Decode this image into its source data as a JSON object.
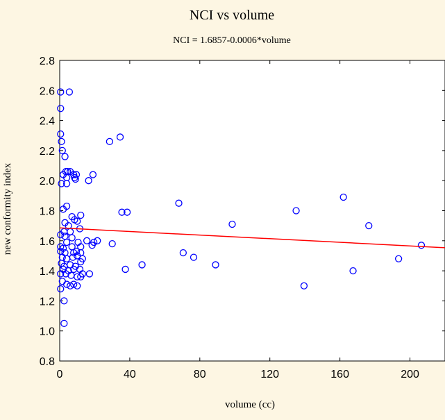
{
  "chart_data": {
    "type": "scatter",
    "title": "NCI vs volume",
    "subtitle": "NCI = 1.6857-0.0006*volume",
    "xlabel": "volume (cc)",
    "ylabel": "new conformity index",
    "xlim": [
      0,
      220
    ],
    "ylim": [
      0.8,
      2.8
    ],
    "x_ticks": [
      0,
      40,
      80,
      120,
      160,
      200
    ],
    "y_ticks": [
      0.8,
      1.0,
      1.2,
      1.4,
      1.6,
      1.8,
      2.0,
      2.2,
      2.4,
      2.6,
      2.8
    ],
    "grid": false,
    "colors": {
      "marker": "#0000ff",
      "fit_line": "#ff0000",
      "background": "#fdf6e3",
      "plot_area": "#ffffff"
    },
    "fit_line": {
      "intercept": 1.6857,
      "slope": -0.0006
    },
    "points": [
      {
        "x": 0.5,
        "y": 2.59
      },
      {
        "x": 0.5,
        "y": 2.48
      },
      {
        "x": 5.5,
        "y": 2.59
      },
      {
        "x": 0.5,
        "y": 2.31
      },
      {
        "x": 1.0,
        "y": 2.26
      },
      {
        "x": 1.5,
        "y": 2.2
      },
      {
        "x": 3.0,
        "y": 2.16
      },
      {
        "x": 3.5,
        "y": 2.06
      },
      {
        "x": 4.5,
        "y": 2.06
      },
      {
        "x": 6.0,
        "y": 2.06
      },
      {
        "x": 2.0,
        "y": 2.04
      },
      {
        "x": 4.0,
        "y": 2.02
      },
      {
        "x": 8.0,
        "y": 2.04
      },
      {
        "x": 9.5,
        "y": 2.04
      },
      {
        "x": 8.5,
        "y": 2.02
      },
      {
        "x": 9.0,
        "y": 2.01
      },
      {
        "x": 16.5,
        "y": 2.0
      },
      {
        "x": 19.0,
        "y": 2.04
      },
      {
        "x": 1.0,
        "y": 1.98
      },
      {
        "x": 4.0,
        "y": 1.98
      },
      {
        "x": 28.5,
        "y": 2.26
      },
      {
        "x": 34.5,
        "y": 2.29
      },
      {
        "x": 2.0,
        "y": 1.81
      },
      {
        "x": 4.0,
        "y": 1.83
      },
      {
        "x": 7.0,
        "y": 1.76
      },
      {
        "x": 8.5,
        "y": 1.74
      },
      {
        "x": 10.0,
        "y": 1.73
      },
      {
        "x": 12.0,
        "y": 1.77
      },
      {
        "x": 3.0,
        "y": 1.72
      },
      {
        "x": 5.0,
        "y": 1.7
      },
      {
        "x": 2.5,
        "y": 1.66
      },
      {
        "x": 6.0,
        "y": 1.66
      },
      {
        "x": 11.5,
        "y": 1.68
      },
      {
        "x": 0.5,
        "y": 1.64
      },
      {
        "x": 3.0,
        "y": 1.63
      },
      {
        "x": 7.0,
        "y": 1.62
      },
      {
        "x": 4.0,
        "y": 1.59
      },
      {
        "x": 10.5,
        "y": 1.59
      },
      {
        "x": 15.5,
        "y": 1.6
      },
      {
        "x": 19.5,
        "y": 1.59
      },
      {
        "x": 21.5,
        "y": 1.6
      },
      {
        "x": 0.5,
        "y": 1.56
      },
      {
        "x": 2.0,
        "y": 1.55
      },
      {
        "x": 7.0,
        "y": 1.56
      },
      {
        "x": 12.0,
        "y": 1.56
      },
      {
        "x": 18.5,
        "y": 1.57
      },
      {
        "x": 30.0,
        "y": 1.58
      },
      {
        "x": 0.5,
        "y": 1.53
      },
      {
        "x": 3.0,
        "y": 1.52
      },
      {
        "x": 8.0,
        "y": 1.52
      },
      {
        "x": 9.5,
        "y": 1.53
      },
      {
        "x": 12.0,
        "y": 1.52
      },
      {
        "x": 1.5,
        "y": 1.49
      },
      {
        "x": 4.0,
        "y": 1.48
      },
      {
        "x": 7.5,
        "y": 1.49
      },
      {
        "x": 10.0,
        "y": 1.5
      },
      {
        "x": 13.0,
        "y": 1.48
      },
      {
        "x": 1.0,
        "y": 1.45
      },
      {
        "x": 2.5,
        "y": 1.43
      },
      {
        "x": 6.0,
        "y": 1.44
      },
      {
        "x": 9.0,
        "y": 1.43
      },
      {
        "x": 12.0,
        "y": 1.46
      },
      {
        "x": 2.0,
        "y": 1.41
      },
      {
        "x": 5.0,
        "y": 1.4
      },
      {
        "x": 8.0,
        "y": 1.41
      },
      {
        "x": 11.5,
        "y": 1.41
      },
      {
        "x": 13.0,
        "y": 1.38
      },
      {
        "x": 0.5,
        "y": 1.38
      },
      {
        "x": 3.5,
        "y": 1.38
      },
      {
        "x": 6.5,
        "y": 1.37
      },
      {
        "x": 10.0,
        "y": 1.36
      },
      {
        "x": 12.0,
        "y": 1.36
      },
      {
        "x": 17.0,
        "y": 1.38
      },
      {
        "x": 1.5,
        "y": 1.33
      },
      {
        "x": 4.0,
        "y": 1.31
      },
      {
        "x": 6.0,
        "y": 1.3
      },
      {
        "x": 8.0,
        "y": 1.31
      },
      {
        "x": 10.0,
        "y": 1.3
      },
      {
        "x": 0.5,
        "y": 1.28
      },
      {
        "x": 2.5,
        "y": 1.2
      },
      {
        "x": 2.5,
        "y": 1.05
      },
      {
        "x": 35.5,
        "y": 1.79
      },
      {
        "x": 38.5,
        "y": 1.79
      },
      {
        "x": 37.5,
        "y": 1.41
      },
      {
        "x": 47.0,
        "y": 1.44
      },
      {
        "x": 68.0,
        "y": 1.85
      },
      {
        "x": 70.5,
        "y": 1.52
      },
      {
        "x": 76.5,
        "y": 1.49
      },
      {
        "x": 89.0,
        "y": 1.44
      },
      {
        "x": 98.5,
        "y": 1.71
      },
      {
        "x": 135.0,
        "y": 1.8
      },
      {
        "x": 139.5,
        "y": 1.3
      },
      {
        "x": 162.0,
        "y": 1.89
      },
      {
        "x": 167.5,
        "y": 1.4
      },
      {
        "x": 176.5,
        "y": 1.7
      },
      {
        "x": 193.5,
        "y": 1.48
      },
      {
        "x": 206.5,
        "y": 1.57
      }
    ]
  }
}
